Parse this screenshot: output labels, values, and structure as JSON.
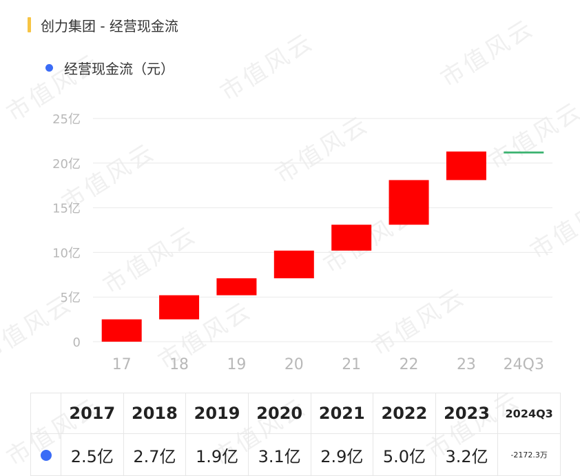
{
  "title": "创力集团 - 经营现金流",
  "legend": {
    "label": "经营现金流（元）",
    "color": "#3b6cf6"
  },
  "watermark": "市值风云",
  "chart_data": {
    "type": "waterfall",
    "categories": [
      "17",
      "18",
      "19",
      "20",
      "21",
      "22",
      "23",
      "24Q3"
    ],
    "values": [
      2.5,
      2.7,
      1.9,
      3.1,
      2.9,
      5.0,
      3.2,
      -0.217
    ],
    "unit": "亿",
    "ylim": [
      0,
      25
    ],
    "yticks": [
      0,
      5,
      10,
      15,
      20,
      25
    ],
    "ytick_labels": [
      "0",
      "5亿",
      "10亿",
      "15亿",
      "20亿",
      "25亿"
    ],
    "colors": {
      "increase": "#ff0000",
      "decrease": "#3cb371"
    },
    "grid": true
  },
  "table": {
    "headers": [
      "2017",
      "2018",
      "2019",
      "2020",
      "2021",
      "2022",
      "2023",
      "2024Q3"
    ],
    "values": [
      "2.5亿",
      "2.7亿",
      "1.9亿",
      "3.1亿",
      "2.9亿",
      "5.0亿",
      "3.2亿",
      "-2172.3万"
    ]
  }
}
